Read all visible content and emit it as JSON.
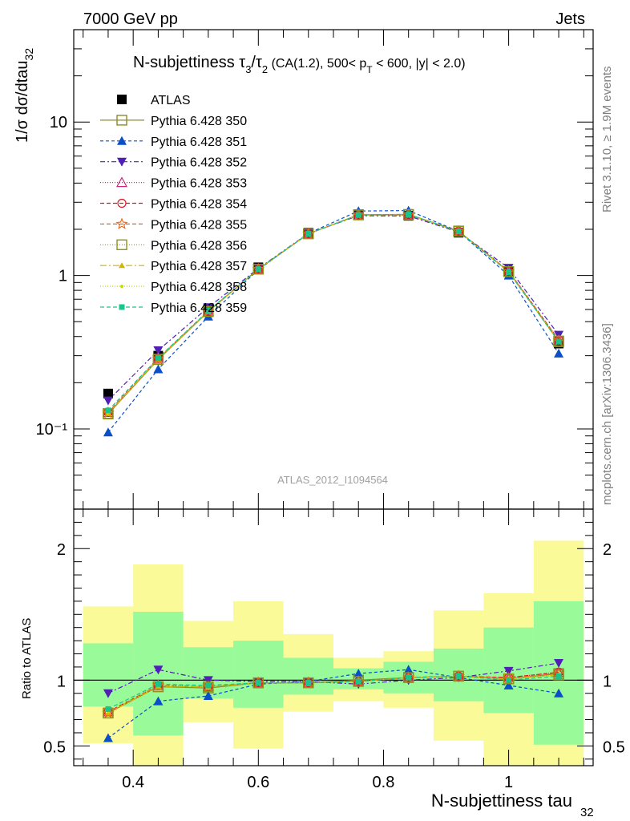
{
  "header": {
    "left": "7000 GeV pp",
    "right": "Jets"
  },
  "side_labels": {
    "top": "Rivet 3.1.10, ≥ 1.9M events",
    "bottom": "mcplots.cern.ch [arXiv:1306.3436]"
  },
  "watermark": "ATLAS_2012_I1094564",
  "chart_data": [
    {
      "type": "line",
      "title": "N-subjettiness τ₃/τ₂ (CA(1.2), 500< p_T < 600, |y| < 2.0)",
      "title_parts": {
        "main": "N-subjettiness τ",
        "sub1": "3",
        "slash": "/τ",
        "sub2": "2",
        "rest": " (CA(1.2), 500< p",
        "sub3": "T",
        "end": " < 600, |y| < 2.0)"
      },
      "ylabel": "1/σ dσ/dtau",
      "ylabel_sub": "32",
      "yscale": "log",
      "ylim": [
        0.03,
        40
      ],
      "xlim": [
        0.305,
        1.135
      ],
      "x": [
        0.36,
        0.44,
        0.52,
        0.6,
        0.68,
        0.76,
        0.84,
        0.92,
        1.0,
        1.08
      ],
      "ytick_labels": [
        "10⁻¹",
        "1",
        "10"
      ],
      "legend_position": "top-left",
      "series": [
        {
          "name": "ATLAS",
          "color": "#000000",
          "marker": "square-filled",
          "dash": "none",
          "values": [
            0.17,
            0.3,
            0.61,
            1.13,
            1.9,
            2.5,
            2.45,
            1.9,
            1.05,
            0.36
          ]
        },
        {
          "name": "Pythia 6.428 350",
          "color": "#8c8c28",
          "marker": "square-open",
          "dash": "solid",
          "values": [
            0.125,
            0.283,
            0.58,
            1.1,
            1.87,
            2.49,
            2.5,
            1.95,
            1.06,
            0.37
          ]
        },
        {
          "name": "Pythia 6.428 351",
          "color": "#0a4fc8",
          "marker": "triangle-filled",
          "dash": "4,3",
          "values": [
            0.095,
            0.245,
            0.54,
            1.09,
            1.88,
            2.63,
            2.65,
            1.94,
            1.0,
            0.31
          ]
        },
        {
          "name": "Pythia 6.428 352",
          "color": "#5020b4",
          "marker": "triangle-down-filled",
          "dash": "6,3,2,3",
          "values": [
            0.153,
            0.325,
            0.62,
            1.11,
            1.88,
            2.45,
            2.44,
            1.92,
            1.12,
            0.41
          ]
        },
        {
          "name": "Pythia 6.428 353",
          "color": "#c8287a",
          "marker": "triangle-open",
          "dash": "1,2",
          "values": [
            0.128,
            0.288,
            0.585,
            1.1,
            1.87,
            2.48,
            2.48,
            1.94,
            1.07,
            0.38
          ]
        },
        {
          "name": "Pythia 6.428 354",
          "color": "#e0141e",
          "marker": "circle-open",
          "dash": "5,3",
          "values": [
            0.128,
            0.288,
            0.585,
            1.1,
            1.87,
            2.48,
            2.48,
            1.94,
            1.07,
            0.38
          ]
        },
        {
          "name": "Pythia 6.428 355",
          "color": "#f06414",
          "marker": "star-open",
          "dash": "5,3",
          "values": [
            0.127,
            0.287,
            0.585,
            1.1,
            1.87,
            2.48,
            2.49,
            1.94,
            1.06,
            0.375
          ]
        },
        {
          "name": "Pythia 6.428 356",
          "color": "#8c9614",
          "marker": "square-open",
          "dash": "1,2",
          "values": [
            0.126,
            0.285,
            0.582,
            1.1,
            1.87,
            2.48,
            2.49,
            1.94,
            1.06,
            0.374
          ]
        },
        {
          "name": "Pythia 6.428 357",
          "color": "#d2b400",
          "marker": "tri-small",
          "dash": "8,3,2,3",
          "values": [
            0.126,
            0.286,
            0.583,
            1.1,
            1.87,
            2.48,
            2.49,
            1.94,
            1.06,
            0.372
          ]
        },
        {
          "name": "Pythia 6.428 358",
          "color": "#c8dc00",
          "marker": "dot",
          "dash": "1,2",
          "values": [
            0.127,
            0.287,
            0.584,
            1.1,
            1.87,
            2.48,
            2.49,
            1.94,
            1.06,
            0.373
          ]
        },
        {
          "name": "Pythia 6.428 359",
          "color": "#14c88c",
          "marker": "square-small-filled",
          "dash": "5,3",
          "values": [
            0.132,
            0.29,
            0.59,
            1.1,
            1.87,
            2.48,
            2.5,
            1.94,
            1.05,
            0.37
          ]
        }
      ]
    },
    {
      "type": "line",
      "ylabel": "Ratio to ATLAS",
      "xlabel": "N-subjettiness tau",
      "xlabel_sub": "32",
      "ylim": [
        0.35,
        2.3
      ],
      "xlim": [
        0.305,
        1.135
      ],
      "xticks": [
        0.4,
        0.6,
        0.8,
        1.0
      ],
      "xtick_labels": [
        "0.4",
        "0.6",
        "0.8",
        "1"
      ],
      "yticks": [
        0.5,
        1,
        2
      ],
      "ytick_labels": [
        "0.5",
        "1",
        "2"
      ],
      "uncertainty_bands": {
        "edges": [
          0.32,
          0.4,
          0.48,
          0.56,
          0.64,
          0.72,
          0.8,
          0.88,
          0.96,
          1.04,
          1.12
        ],
        "inner": {
          "color": "#98fa98",
          "low": [
            0.8,
            0.58,
            0.86,
            0.79,
            0.89,
            0.93,
            0.9,
            0.84,
            0.75,
            0.51
          ],
          "high": [
            1.28,
            1.52,
            1.25,
            1.3,
            1.17,
            1.09,
            1.14,
            1.24,
            1.4,
            1.6
          ]
        },
        "outer": {
          "color": "#fafa98",
          "low": [
            0.52,
            0.3,
            0.68,
            0.48,
            0.76,
            0.84,
            0.79,
            0.54,
            0.35,
            0.32
          ],
          "high": [
            1.56,
            1.88,
            1.45,
            1.6,
            1.35,
            1.17,
            1.22,
            1.53,
            1.66,
            2.06
          ]
        }
      },
      "series": [
        {
          "name": "Pythia 6.428 350",
          "values": [
            0.75,
            0.95,
            0.94,
            0.98,
            0.98,
            1.0,
            1.02,
            1.03,
            1.01,
            1.05
          ]
        },
        {
          "name": "Pythia 6.428 351",
          "values": [
            0.56,
            0.84,
            0.88,
            0.97,
            0.99,
            1.05,
            1.08,
            1.02,
            0.96,
            0.9
          ]
        },
        {
          "name": "Pythia 6.428 352",
          "values": [
            0.9,
            1.08,
            1.0,
            0.99,
            0.99,
            0.97,
            1.0,
            1.02,
            1.07,
            1.13
          ]
        },
        {
          "name": "Pythia 6.428 353",
          "values": [
            0.76,
            0.96,
            0.95,
            0.98,
            0.98,
            0.99,
            1.02,
            1.03,
            1.02,
            1.06
          ]
        },
        {
          "name": "Pythia 6.428 354",
          "values": [
            0.76,
            0.96,
            0.95,
            0.98,
            0.98,
            0.99,
            1.02,
            1.03,
            1.02,
            1.06
          ]
        },
        {
          "name": "Pythia 6.428 355",
          "values": [
            0.75,
            0.96,
            0.95,
            0.98,
            0.98,
            0.99,
            1.02,
            1.03,
            1.01,
            1.05
          ]
        },
        {
          "name": "Pythia 6.428 356",
          "values": [
            0.75,
            0.95,
            0.95,
            0.98,
            0.98,
            0.99,
            1.02,
            1.03,
            1.01,
            1.04
          ]
        },
        {
          "name": "Pythia 6.428 357",
          "values": [
            0.75,
            0.95,
            0.95,
            0.98,
            0.98,
            0.99,
            1.02,
            1.03,
            1.01,
            1.04
          ]
        },
        {
          "name": "Pythia 6.428 358",
          "values": [
            0.76,
            0.96,
            0.95,
            0.98,
            0.98,
            0.99,
            1.02,
            1.03,
            1.01,
            1.04
          ]
        },
        {
          "name": "Pythia 6.428 359",
          "values": [
            0.78,
            0.97,
            0.96,
            0.98,
            0.98,
            0.99,
            1.02,
            1.03,
            1.0,
            1.03
          ]
        }
      ]
    }
  ]
}
